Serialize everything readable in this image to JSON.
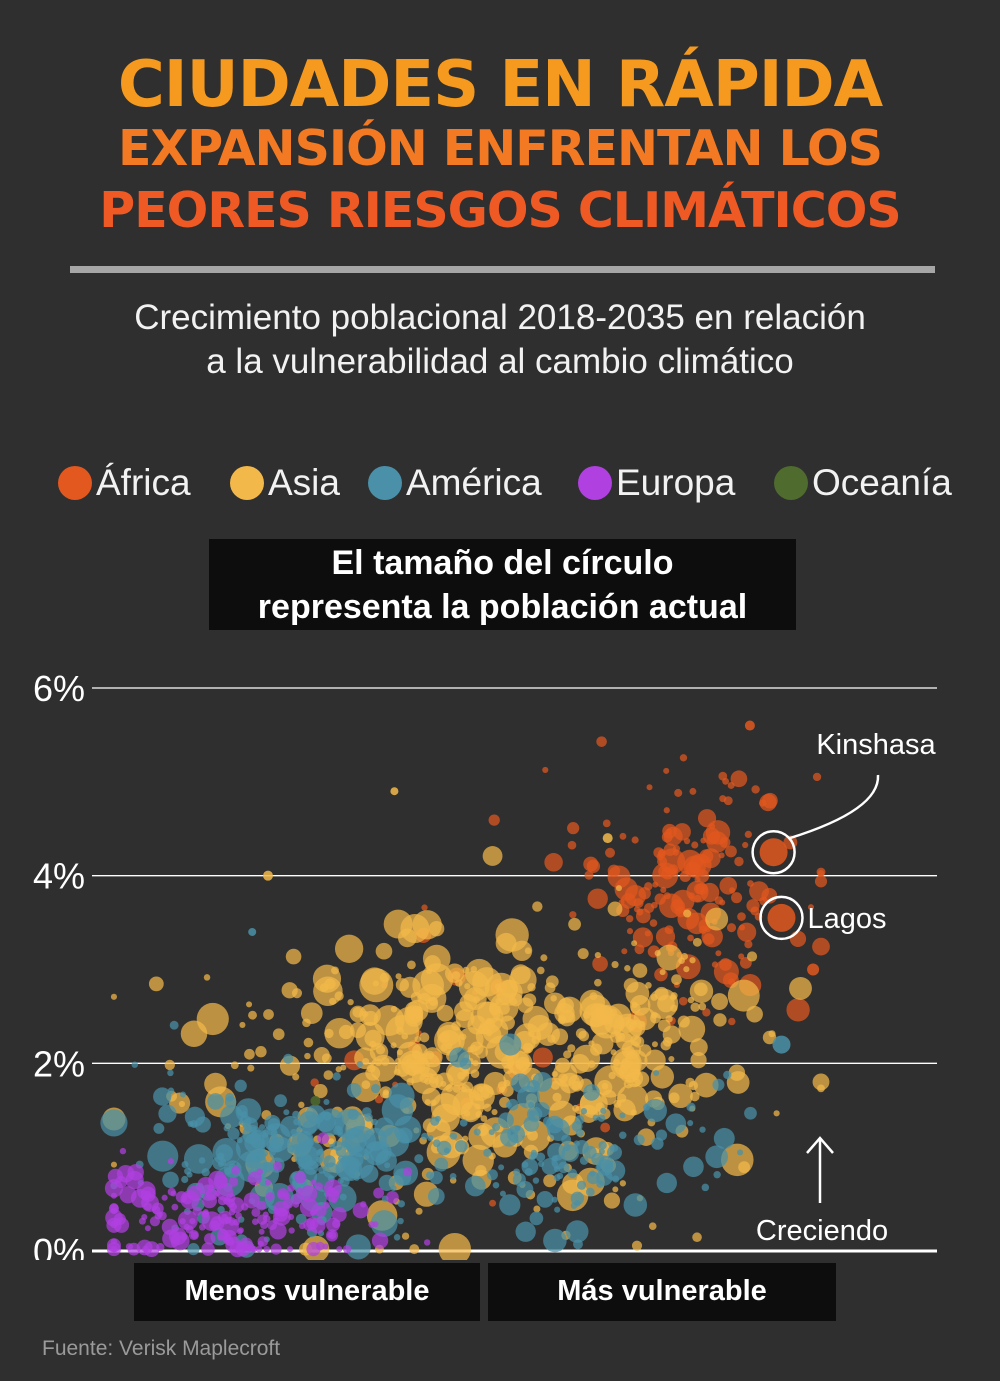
{
  "title": {
    "line1": "CIUDADES EN RÁPIDA",
    "line2": "EXPANSIÓN ENFRENTAN LOS",
    "line3": "PEORES RIESGOS CLIMÁTICOS"
  },
  "subtitle": {
    "line1": "Crecimiento poblacional 2018-2035 en relación",
    "line2": "a la vulnerabilidad al cambio climático"
  },
  "legend": [
    {
      "label": "África",
      "color": "#e2581e"
    },
    {
      "label": "Asia",
      "color": "#f2b94a"
    },
    {
      "label": "América",
      "color": "#4a90a8"
    },
    {
      "label": "Europa",
      "color": "#b040e0"
    },
    {
      "label": "Oceanía",
      "color": "#4f6b2e"
    }
  ],
  "note": {
    "line1": "El tamaño del círculo",
    "line2": "representa la población actual"
  },
  "x_labels": {
    "left": "Menos vulnerable",
    "right": "Más vulnerable"
  },
  "source": "Fuente: Verisk Maplecroft",
  "chart_data": {
    "type": "scatter",
    "xlabel": "",
    "ylabel": "",
    "yticks": [
      "0%",
      "2%",
      "4%",
      "6%"
    ],
    "ylim": [
      0,
      6
    ],
    "xlim": [
      0,
      10
    ],
    "grid": true,
    "annotations": [
      {
        "label": "Kinshasa",
        "x": 8.4,
        "y": 4.25,
        "series": "África"
      },
      {
        "label": "Lagos",
        "x": 8.5,
        "y": 3.55,
        "series": "África"
      },
      {
        "label": "Creciendo",
        "direction": "up"
      }
    ],
    "series": [
      {
        "name": "África",
        "color": "#e2581e",
        "clusters": [
          {
            "cx": 7.3,
            "cy": 3.9,
            "sx": 0.7,
            "sy": 0.6,
            "n": 170,
            "smin": 3,
            "smax": 13
          },
          {
            "cx": 4.7,
            "cy": 2.2,
            "sx": 0.9,
            "sy": 0.7,
            "n": 25,
            "smin": 3,
            "smax": 11
          }
        ],
        "points": [
          {
            "x": 8.4,
            "y": 4.25,
            "s": 14
          },
          {
            "x": 8.5,
            "y": 3.55,
            "s": 14
          },
          {
            "x": 8.9,
            "y": 3.0,
            "s": 6
          },
          {
            "x": 8.1,
            "y": 5.6,
            "s": 5
          }
        ]
      },
      {
        "name": "Asia",
        "color": "#f2b94a",
        "clusters": [
          {
            "cx": 4.4,
            "cy": 2.0,
            "sx": 1.7,
            "sy": 0.7,
            "n": 480,
            "smin": 3,
            "smax": 17
          },
          {
            "cx": 6.8,
            "cy": 2.5,
            "sx": 0.6,
            "sy": 0.6,
            "n": 60,
            "smin": 3,
            "smax": 14
          }
        ],
        "points": [
          {
            "x": 2.0,
            "y": 4.0,
            "s": 5
          },
          {
            "x": 3.6,
            "y": 4.9,
            "s": 4
          },
          {
            "x": 6.3,
            "y": 4.4,
            "s": 5
          }
        ]
      },
      {
        "name": "América",
        "color": "#4a90a8",
        "clusters": [
          {
            "cx": 2.2,
            "cy": 1.0,
            "sx": 0.9,
            "sy": 0.4,
            "n": 190,
            "smin": 3,
            "smax": 16
          },
          {
            "cx": 5.7,
            "cy": 1.1,
            "sx": 1.1,
            "sy": 0.4,
            "n": 140,
            "smin": 3,
            "smax": 12
          }
        ],
        "points": [
          {
            "x": 8.5,
            "y": 2.2,
            "s": 9
          },
          {
            "x": 1.8,
            "y": 3.4,
            "s": 4
          }
        ]
      },
      {
        "name": "Europa",
        "color": "#b040e0",
        "clusters": [
          {
            "cx": 1.5,
            "cy": 0.35,
            "sx": 0.9,
            "sy": 0.25,
            "n": 190,
            "smin": 3,
            "smax": 10
          }
        ],
        "points": []
      },
      {
        "name": "Oceanía",
        "color": "#4f6b2e",
        "clusters": [],
        "points": [
          {
            "x": 2.6,
            "y": 1.6,
            "s": 5
          }
        ]
      }
    ]
  }
}
